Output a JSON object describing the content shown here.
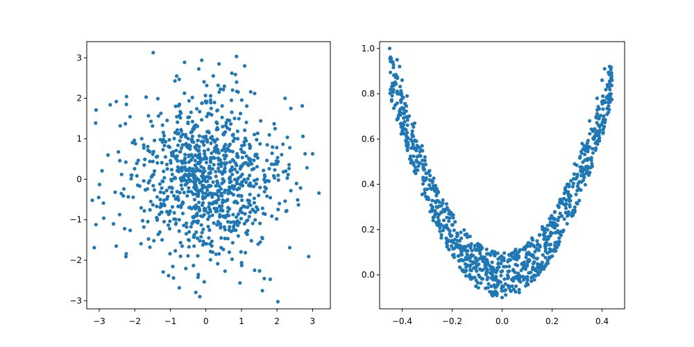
{
  "chart_data": [
    {
      "type": "scatter",
      "title": "",
      "xlabel": "",
      "ylabel": "",
      "xlim": [
        -3.35,
        3.5
      ],
      "ylim": [
        -3.2,
        3.4
      ],
      "xticks": [
        -3,
        -2,
        -1,
        0,
        1,
        2,
        3
      ],
      "yticks": [
        -3,
        -2,
        -1,
        0,
        1,
        2,
        3
      ],
      "xtick_labels": [
        "−3",
        "−2",
        "−1",
        "0",
        "1",
        "2",
        "3"
      ],
      "ytick_labels": [
        "−3",
        "−2",
        "−1",
        "0",
        "1",
        "2",
        "3"
      ],
      "grid": false,
      "marker_color": "#1f77b4",
      "series": [
        {
          "n_points": 1000,
          "points": [
            [
              -1.48,
              3.13
            ],
            [
              -0.6,
              2.89
            ],
            [
              0.37,
              2.85
            ],
            [
              0.73,
              2.62
            ],
            [
              1.09,
              2.8
            ],
            [
              -0.82,
              2.55
            ],
            [
              -0.75,
              2.47
            ],
            [
              -0.87,
              2.43
            ],
            [
              -0.38,
              2.02
            ],
            [
              0.41,
              2.23
            ],
            [
              1.26,
              2.16
            ],
            [
              1.37,
              2.12
            ],
            [
              0.87,
              2.17
            ],
            [
              -2.69,
              1.84
            ],
            [
              -2.52,
              1.92
            ],
            [
              -1.68,
              2.03
            ],
            [
              -1.35,
              1.99
            ],
            [
              -0.01,
              2.07
            ],
            [
              2.39,
              1.75
            ],
            [
              -3.1,
              1.39
            ],
            [
              -2.41,
              1.32
            ],
            [
              1.92,
              1.37
            ],
            [
              2.73,
              1.06
            ],
            [
              2.36,
              0.78
            ],
            [
              2.79,
              0.63
            ],
            [
              3.0,
              0.63
            ],
            [
              -2.42,
              0.46
            ],
            [
              -2.92,
              0.21
            ],
            [
              2.34,
              0.36
            ],
            [
              2.29,
              0.03
            ],
            [
              -2.37,
              0.12
            ],
            [
              -2.99,
              -0.13
            ],
            [
              -2.38,
              -0.35
            ],
            [
              -2.55,
              -0.32
            ],
            [
              3.18,
              -0.34
            ],
            [
              2.39,
              -0.28
            ],
            [
              2.23,
              -0.54
            ],
            [
              1.99,
              -0.98
            ],
            [
              -3.09,
              -1.12
            ],
            [
              -2.24,
              -1.84
            ],
            [
              -2.52,
              -1.65
            ],
            [
              -3.14,
              -1.69
            ],
            [
              -2.25,
              -1.91
            ],
            [
              -1.05,
              -2.38
            ],
            [
              -0.22,
              -2.42
            ],
            [
              0.96,
              -2.56
            ],
            [
              1.59,
              -2.75
            ],
            [
              1.81,
              -2.47
            ],
            [
              -0.17,
              -2.9
            ],
            [
              1.47,
              -1.6
            ],
            [
              1.53,
              -1.55
            ],
            [
              -1.34,
              -1.36
            ]
          ]
        }
      ]
    },
    {
      "type": "scatter",
      "title": "",
      "xlabel": "",
      "ylabel": "",
      "xlim": [
        -0.49,
        0.49
      ],
      "ylim": [
        -0.15,
        1.03
      ],
      "xticks": [
        -0.4,
        -0.2,
        0.0,
        0.2,
        0.4
      ],
      "yticks": [
        0.0,
        0.2,
        0.4,
        0.6,
        0.8,
        1.0
      ],
      "xtick_labels": [
        "−0.4",
        "−0.2",
        "0.0",
        "0.2",
        "0.4"
      ],
      "ytick_labels": [
        "0.0",
        "0.2",
        "0.4",
        "0.6",
        "0.8",
        "1.0"
      ],
      "grid": false,
      "marker_color": "#1f77b4",
      "series": [
        {
          "n_points": 1000,
          "relation": "y ≈ x²/(0.45²)·0.9 with noise ±0.1",
          "points": [
            [
              -0.45,
              1.0
            ],
            [
              -0.44,
              0.94
            ],
            [
              -0.42,
              0.95
            ],
            [
              -0.41,
              0.92
            ],
            [
              -0.4,
              0.86
            ],
            [
              -0.38,
              0.79
            ],
            [
              -0.35,
              0.67
            ],
            [
              -0.32,
              0.57
            ],
            [
              -0.29,
              0.46
            ],
            [
              -0.26,
              0.36
            ],
            [
              -0.23,
              0.28
            ],
            [
              -0.2,
              0.22
            ],
            [
              -0.17,
              0.15
            ],
            [
              -0.14,
              0.09
            ],
            [
              -0.1,
              0.04
            ],
            [
              -0.06,
              -0.02
            ],
            [
              -0.02,
              -0.08
            ],
            [
              0.0,
              -0.1
            ],
            [
              0.04,
              -0.05
            ],
            [
              0.08,
              0.05
            ],
            [
              0.11,
              0.09
            ],
            [
              0.14,
              0.15
            ],
            [
              0.17,
              0.19
            ],
            [
              0.2,
              0.25
            ],
            [
              0.23,
              0.32
            ],
            [
              0.26,
              0.4
            ],
            [
              0.29,
              0.49
            ],
            [
              0.32,
              0.58
            ],
            [
              0.35,
              0.68
            ],
            [
              0.38,
              0.78
            ],
            [
              0.4,
              0.86
            ],
            [
              0.41,
              0.91
            ],
            [
              0.43,
              0.92
            ],
            [
              0.44,
              0.86
            ]
          ]
        }
      ]
    }
  ]
}
